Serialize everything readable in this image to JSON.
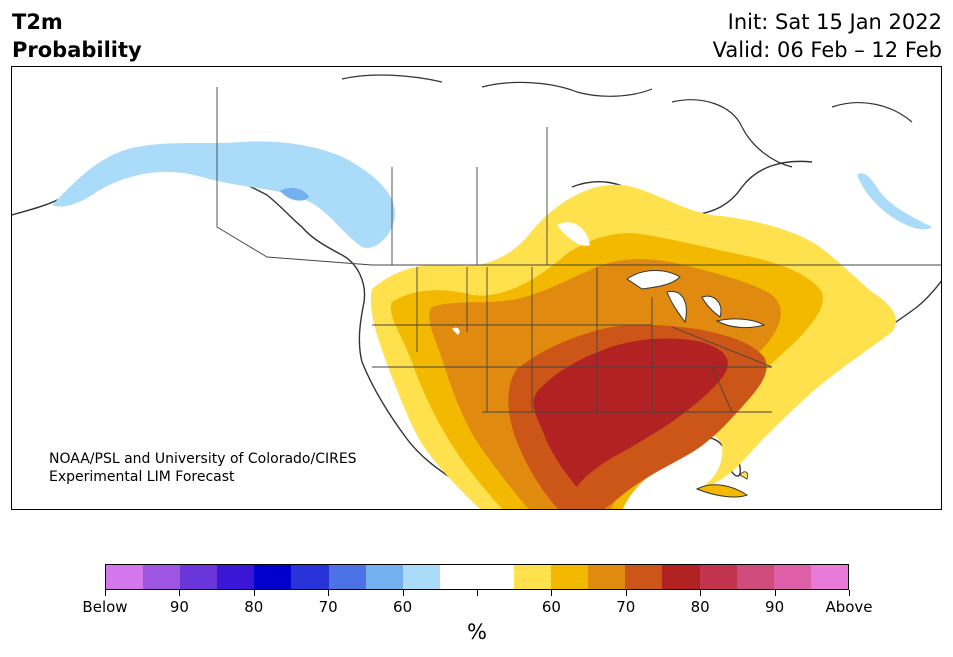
{
  "header": {
    "variable": "T2m",
    "product": "Probability",
    "init": "Init: Sat 15 Jan 2022",
    "valid": "Valid: 06 Feb – 12 Feb"
  },
  "map": {
    "region": "North America",
    "credit_line1": "NOAA/PSL and University of Colorado/CIRES",
    "credit_line2": "Experimental LIM Forecast"
  },
  "colorbar": {
    "unit": "%",
    "colors": [
      "#d377ec",
      "#9e55e0",
      "#6b36d9",
      "#3a16d6",
      "#0000cd",
      "#2833d9",
      "#4d72e6",
      "#74aff0",
      "#aadcfa",
      "#ffffff",
      "#ffffff",
      "#ffe04d",
      "#f2b900",
      "#e08a10",
      "#cc5518",
      "#b22222",
      "#c2334d",
      "#d04c7a",
      "#dc5fa8",
      "#e87ad8"
    ],
    "tick_labels": [
      "Below",
      "90",
      "80",
      "70",
      "60",
      "",
      "60",
      "70",
      "80",
      "90",
      "Above"
    ]
  },
  "legend_colors": {
    "below_60": "#aadcfa",
    "below_70": "#74aff0",
    "above_60": "#ffe04d",
    "above_65": "#f2b900",
    "above_70": "#e08a10",
    "above_75": "#cc5518",
    "above_80": "#b22222"
  }
}
